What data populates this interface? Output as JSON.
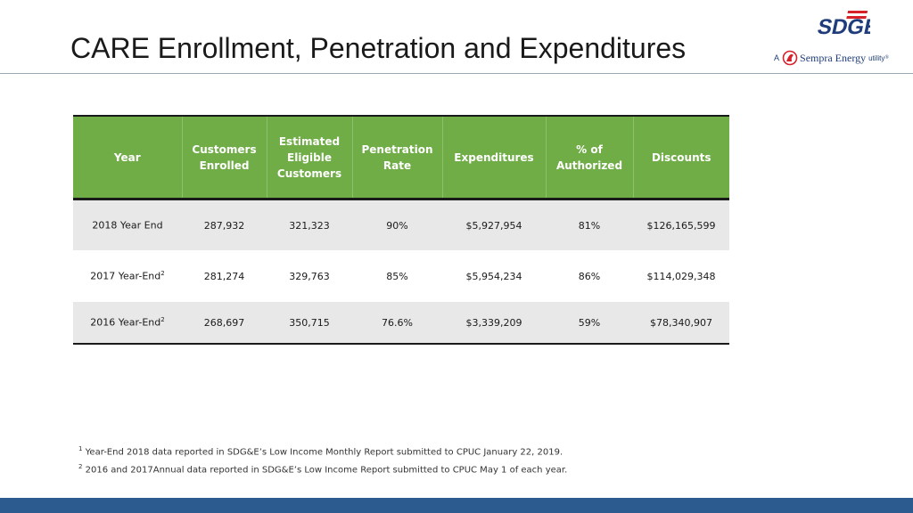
{
  "title": "CARE Enrollment, Penetration and Expenditures",
  "logo": {
    "mark_text": "SDGE",
    "tag_a": "A",
    "tag_company": "Sempra Energy",
    "tag_utility": "utility",
    "tag_trademark": "®",
    "brand_red": "#d6202a",
    "brand_blue": "#1f3d7a"
  },
  "colors": {
    "header_green": "#70ad47",
    "row_gray": "#e8e8e8",
    "bottom_bar_blue": "#2c5c8f"
  },
  "table": {
    "headers": [
      "Year",
      "Customers Enrolled",
      "Estimated Eligible Customers",
      "Penetration Rate",
      "Expenditures",
      "% of Authorized",
      "Discounts"
    ],
    "rows": [
      {
        "year": "2018 Year End",
        "year_sup": "",
        "customers_enrolled": "287,932",
        "estimated_eligible": "321,323",
        "penetration_rate": "90%",
        "expenditures": "$5,927,954",
        "pct_authorized": "81%",
        "discounts": "$126,165,599"
      },
      {
        "year": "2017 Year-End",
        "year_sup": "2",
        "customers_enrolled": "281,274",
        "estimated_eligible": "329,763",
        "penetration_rate": "85%",
        "expenditures": "$5,954,234",
        "pct_authorized": "86%",
        "discounts": "$114,029,348"
      },
      {
        "year": "2016 Year-End",
        "year_sup": "2",
        "customers_enrolled": "268,697",
        "estimated_eligible": "350,715",
        "penetration_rate": "76.6%",
        "expenditures": "$3,339,209",
        "pct_authorized": "59%",
        "discounts": "$78,340,907"
      }
    ]
  },
  "footnotes": [
    {
      "marker": "1",
      "text": "Year-End 2018 data reported in SDG&E’s Low Income Monthly Report submitted to CPUC January 22, 2019."
    },
    {
      "marker": "2",
      "text": "2016 and 2017Annual data reported in SDG&E’s Low Income Report submitted to CPUC May 1 of each year."
    }
  ]
}
